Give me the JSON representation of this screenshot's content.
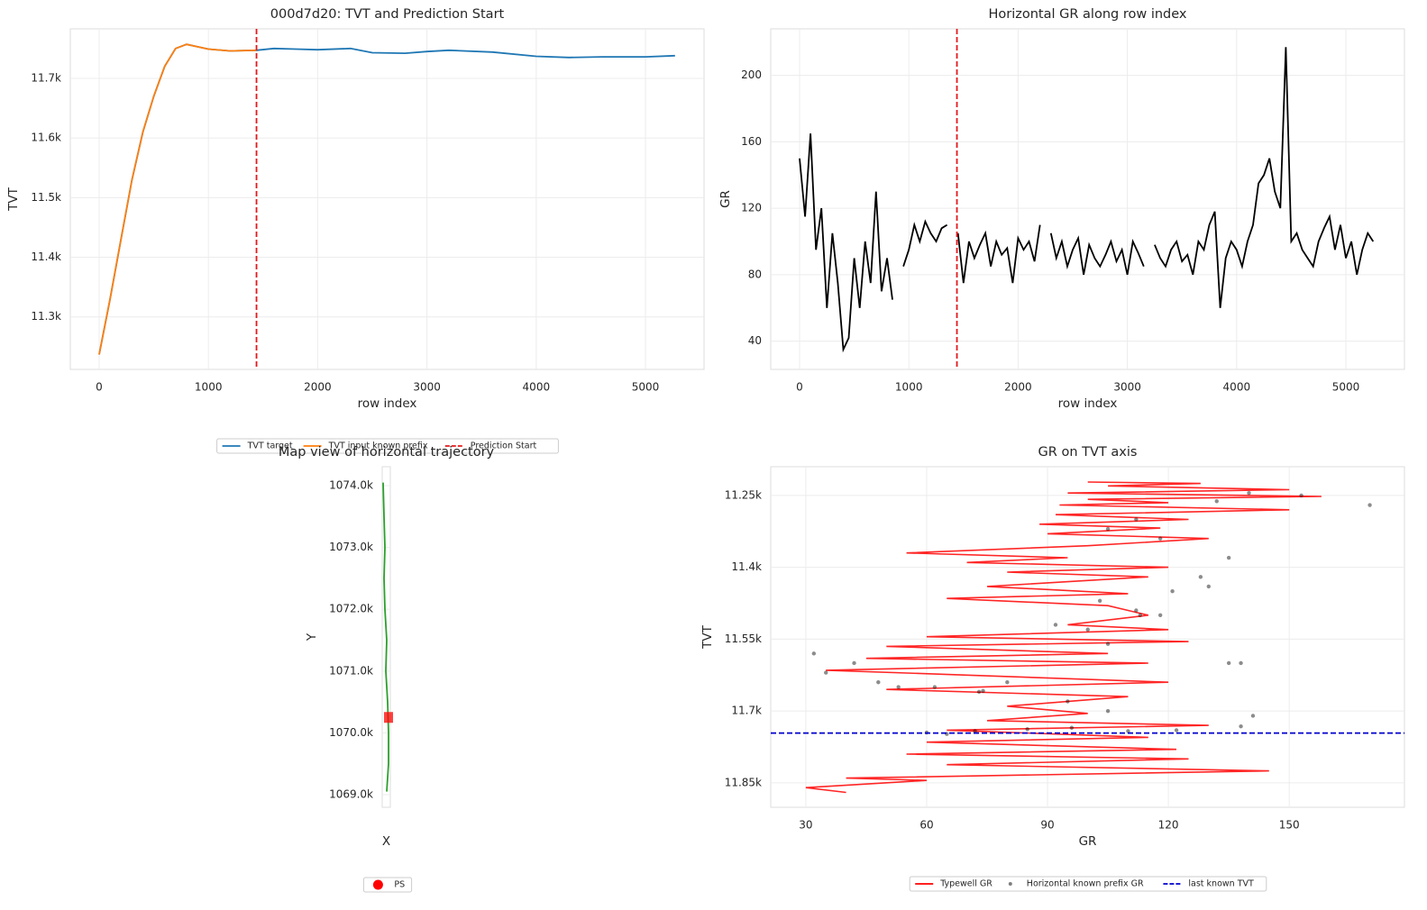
{
  "chart_data": [
    {
      "type": "line",
      "title": "000d7d20: TVT and Prediction Start",
      "x_label": "row index",
      "y_label": "TVT",
      "xlim": [
        -264,
        5536
      ],
      "ylim": [
        11212,
        11783
      ],
      "grid": true,
      "legend": "lower center",
      "xticks": [
        0,
        1000,
        2000,
        3000,
        4000,
        5000
      ],
      "yticks": [
        {
          "value": 11300,
          "label": "11.3k"
        },
        {
          "value": 11400,
          "label": "11.4k"
        },
        {
          "value": 11500,
          "label": "11.5k"
        },
        {
          "value": 11600,
          "label": "11.6k"
        },
        {
          "value": 11700,
          "label": "11.7k"
        }
      ],
      "x": [
        0,
        100,
        200,
        300,
        400,
        500,
        600,
        700,
        800,
        900,
        1000,
        1200,
        1440,
        1600,
        1800,
        2000,
        2300,
        2500,
        2800,
        3000,
        3200,
        3600,
        4000,
        4300,
        4600,
        5000,
        5270
      ],
      "series": [
        {
          "name": "TVT target",
          "kind": "line",
          "color": "#1f77b4",
          "values": [
            11237,
            11330,
            11430,
            11530,
            11610,
            11670,
            11720,
            11750,
            11757,
            11753,
            11749,
            11746,
            11747,
            11750,
            11749,
            11748,
            11750,
            11743,
            11742,
            11745,
            11747,
            11744,
            11737,
            11735,
            11736,
            11736,
            11738
          ]
        },
        {
          "name": "TVT input known prefix",
          "kind": "line",
          "color": "#ff7f0e",
          "values": [
            11237,
            11330,
            11430,
            11530,
            11610,
            11670,
            11720,
            11750,
            11757,
            11753,
            11749,
            11746,
            11747,
            null,
            null,
            null,
            null,
            null,
            null,
            null,
            null,
            null,
            null,
            null,
            null,
            null,
            null
          ]
        },
        {
          "name": "Prediction Start",
          "kind": "vline",
          "color": "#e31a1c",
          "dash": true,
          "x": 1440
        }
      ]
    },
    {
      "type": "line",
      "title": "Horizontal GR along row index",
      "x_label": "row index",
      "y_label": "GR",
      "xlim": [
        -264,
        5536
      ],
      "ylim": [
        23,
        228
      ],
      "grid": true,
      "xticks": [
        0,
        1000,
        2000,
        3000,
        4000,
        5000
      ],
      "yticks": [
        40,
        80,
        120,
        160,
        200
      ],
      "x": [
        0,
        50,
        100,
        150,
        200,
        250,
        300,
        350,
        400,
        450,
        500,
        550,
        600,
        650,
        700,
        750,
        800,
        850,
        900,
        950,
        1000,
        1050,
        1100,
        1150,
        1200,
        1250,
        1300,
        1350,
        1400,
        1450,
        1500,
        1550,
        1600,
        1650,
        1700,
        1750,
        1800,
        1850,
        1900,
        1950,
        2000,
        2050,
        2100,
        2150,
        2200,
        2250,
        2300,
        2350,
        2400,
        2450,
        2500,
        2550,
        2600,
        2650,
        2700,
        2750,
        2800,
        2850,
        2900,
        2950,
        3000,
        3050,
        3100,
        3150,
        3200,
        3250,
        3300,
        3350,
        3400,
        3450,
        3500,
        3550,
        3600,
        3650,
        3700,
        3750,
        3800,
        3850,
        3900,
        3950,
        4000,
        4050,
        4100,
        4150,
        4200,
        4250,
        4300,
        4350,
        4400,
        4450,
        4500,
        4550,
        4600,
        4650,
        4700,
        4750,
        4800,
        4850,
        4900,
        4950,
        5000,
        5050,
        5100,
        5150,
        5200,
        5250
      ],
      "series": [
        {
          "kind": "line",
          "color": "#000000",
          "values": [
            150,
            115,
            165,
            95,
            120,
            60,
            105,
            75,
            35,
            42,
            90,
            60,
            100,
            75,
            130,
            70,
            90,
            65,
            null,
            85,
            95,
            110,
            100,
            112,
            105,
            100,
            108,
            110,
            null,
            105,
            75,
            100,
            90,
            98,
            105,
            85,
            100,
            92,
            96,
            75,
            102,
            95,
            100,
            88,
            110,
            null,
            105,
            90,
            100,
            85,
            95,
            102,
            80,
            98,
            90,
            85,
            92,
            100,
            88,
            95,
            80,
            100,
            93,
            85,
            null,
            98,
            90,
            85,
            95,
            100,
            88,
            92,
            80,
            100,
            95,
            110,
            118,
            60,
            90,
            100,
            95,
            85,
            100,
            110,
            135,
            140,
            150,
            130,
            120,
            217,
            100,
            105,
            95,
            90,
            85,
            100,
            108,
            115,
            95,
            110,
            90,
            100,
            80,
            95,
            105,
            100
          ]
        },
        {
          "kind": "vline",
          "color": "#e31a1c",
          "dash": true,
          "x": 1440
        }
      ]
    },
    {
      "type": "line",
      "title": "Map view of horizontal trajectory",
      "x_label": "X",
      "y_label": "Y",
      "xlim": [
        0,
        9
      ],
      "ylim": [
        1068796,
        1074306
      ],
      "grid": true,
      "legend": "lower center",
      "xticks": [],
      "yticks": [
        {
          "value": 1069000,
          "label": "1069.0k"
        },
        {
          "value": 1070000,
          "label": "1070.0k"
        },
        {
          "value": 1071000,
          "label": "1071.0k"
        },
        {
          "value": 1072000,
          "label": "1072.0k"
        },
        {
          "value": 1073000,
          "label": "1073.0k"
        },
        {
          "value": 1074000,
          "label": "1074.0k"
        }
      ],
      "x": [
        1,
        2,
        3,
        2,
        3,
        5,
        4,
        6,
        7,
        7,
        5
      ],
      "series": [
        {
          "kind": "line",
          "color": "#2ca02c",
          "values": [
            1074050,
            1073500,
            1073000,
            1072500,
            1072000,
            1071500,
            1071000,
            1070500,
            1070000,
            1069500,
            1069050
          ]
        },
        {
          "name": "PS",
          "kind": "marker",
          "color": "#ff0000",
          "x": 7,
          "y": 1070250
        }
      ]
    },
    {
      "type": "line",
      "title": "GR on TVT axis",
      "x_label": "GR",
      "y_label": "TVT",
      "xlim": [
        21.3,
        178.6
      ],
      "ylim": [
        11190,
        11901
      ],
      "y_inverted": true,
      "grid": true,
      "legend": "lower center",
      "xticks": [
        30,
        60,
        90,
        120,
        150
      ],
      "yticks": [
        {
          "value": 11250,
          "label": "11.25k"
        },
        {
          "value": 11400,
          "label": "11.4k"
        },
        {
          "value": 11550,
          "label": "11.55k"
        },
        {
          "value": 11700,
          "label": "11.7k"
        },
        {
          "value": 11850,
          "label": "11.85k"
        }
      ],
      "series": [
        {
          "name": "Typewell GR",
          "kind": "line",
          "color": "#ff0000",
          "x": [
            100,
            128,
            105,
            150,
            95,
            158,
            100,
            120,
            93,
            150,
            92,
            125,
            88,
            118,
            90,
            130,
            100,
            55,
            95,
            70,
            120,
            80,
            115,
            75,
            110,
            65,
            105,
            110,
            115,
            95,
            120,
            60,
            125,
            50,
            105,
            45,
            115,
            35,
            70,
            120,
            50,
            110,
            80,
            100,
            75,
            130,
            65,
            115,
            60,
            122,
            55,
            125,
            65,
            145,
            40,
            60,
            30,
            40
          ],
          "values": [
            11222,
            11225,
            11230,
            11238,
            11245,
            11252,
            11258,
            11265,
            11270,
            11280,
            11290,
            11300,
            11310,
            11318,
            11330,
            11340,
            11355,
            11370,
            11380,
            11390,
            11400,
            11410,
            11420,
            11440,
            11455,
            11465,
            11480,
            11490,
            11500,
            11520,
            11530,
            11545,
            11555,
            11565,
            11580,
            11590,
            11600,
            11615,
            11625,
            11640,
            11655,
            11670,
            11690,
            11705,
            11720,
            11730,
            11740,
            11755,
            11765,
            11780,
            11790,
            11800,
            11812,
            11825,
            11840,
            11845,
            11860,
            11870
          ]
        },
        {
          "name": "Horizontal known prefix GR",
          "kind": "scatter",
          "color": "#000000",
          "x": [
            170,
            153,
            140,
            132,
            112,
            105,
            118,
            135,
            128,
            130,
            103,
            112,
            118,
            100,
            92,
            105,
            113,
            121,
            138,
            135,
            32,
            35,
            48,
            62,
            73,
            74,
            80,
            95,
            105,
            141,
            138,
            60,
            65,
            72,
            85,
            96,
            110,
            122,
            53,
            42
          ],
          "values": [
            11270,
            11250,
            11245,
            11262,
            11300,
            11320,
            11340,
            11380,
            11420,
            11440,
            11470,
            11490,
            11500,
            11530,
            11520,
            11560,
            11500,
            11450,
            11600,
            11600,
            11580,
            11620,
            11640,
            11650,
            11660,
            11658,
            11640,
            11680,
            11700,
            11710,
            11732,
            11745,
            11748,
            11742,
            11738,
            11735,
            11742,
            11740,
            11650,
            11600
          ]
        },
        {
          "name": "last known TVT",
          "kind": "hline",
          "color": "#0000cc",
          "dash": true,
          "value": 11746
        }
      ]
    }
  ]
}
